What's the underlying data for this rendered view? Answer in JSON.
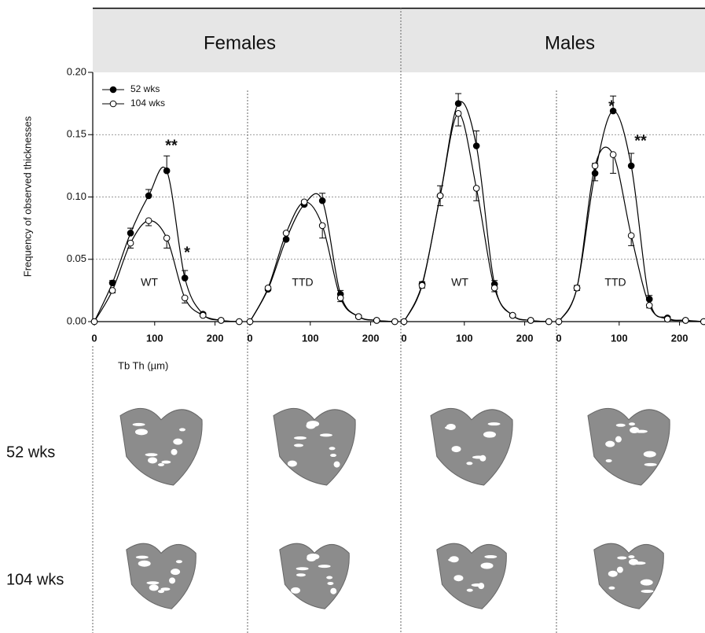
{
  "header": {
    "groups": [
      "Females",
      "Males"
    ]
  },
  "rows": [
    "52 wks",
    "104 wks"
  ],
  "chart_data": [
    {
      "type": "line",
      "y_label": "Frequency of observed thicknesses",
      "x_label": "Tb Th (µm)",
      "label": "WT",
      "annotations": [
        "**",
        "*"
      ],
      "ylim": [
        0,
        0.2
      ],
      "yticks": [
        {
          "value": 0,
          "label": "0.00"
        },
        0.05,
        {
          "value": 0.1,
          "label": "0.10"
        },
        0.15,
        {
          "value": 0.2,
          "label": "0.20"
        }
      ],
      "xlim": [
        0,
        250
      ],
      "xticks": [
        0,
        100,
        200
      ],
      "x": [
        0,
        30,
        60,
        90,
        120,
        150,
        180,
        210,
        240
      ],
      "series": [
        {
          "name": "52 wks",
          "color": "#000000",
          "values": [
            0,
            0.031,
            0.071,
            0.101,
            0.121,
            0.035,
            0.006,
            0.001,
            0
          ],
          "errors": [
            0,
            0.002,
            0.004,
            0.005,
            0.012,
            0.006,
            0.001,
            0,
            0
          ]
        },
        {
          "name": "104 wks",
          "color": "#ffffff",
          "values": [
            0,
            0.025,
            0.063,
            0.081,
            0.067,
            0.019,
            0.005,
            0.001,
            0
          ],
          "errors": [
            0,
            0.002,
            0.004,
            0.004,
            0.008,
            0.004,
            0.001,
            0,
            0
          ]
        }
      ]
    },
    {
      "type": "line",
      "label": "TTD",
      "xlim": [
        0,
        250
      ],
      "xticks": [
        0,
        100,
        200
      ],
      "x": [
        0,
        30,
        60,
        90,
        120,
        150,
        180,
        210,
        240
      ],
      "series": [
        {
          "color": "#000000",
          "values": [
            0,
            0.026,
            0.066,
            0.094,
            0.097,
            0.022,
            0.004,
            0.001,
            0
          ],
          "errors": [
            0,
            0.002,
            0.005,
            0.003,
            0.006,
            0.003,
            0.001,
            0,
            0
          ]
        },
        {
          "color": "#ffffff",
          "values": [
            0,
            0.027,
            0.071,
            0.096,
            0.077,
            0.019,
            0.004,
            0.001,
            0
          ],
          "errors": [
            0,
            0.002,
            0.004,
            0.003,
            0.01,
            0.003,
            0.001,
            0,
            0
          ]
        }
      ]
    },
    {
      "type": "line",
      "label": "WT",
      "xlim": [
        0,
        250
      ],
      "xticks": [
        0,
        100,
        200
      ],
      "x": [
        0,
        30,
        60,
        90,
        120,
        150,
        180,
        210,
        240
      ],
      "series": [
        {
          "color": "#000000",
          "values": [
            0,
            0.03,
            0.101,
            0.175,
            0.141,
            0.03,
            0.005,
            0.001,
            0
          ],
          "errors": [
            0,
            0.002,
            0.008,
            0.008,
            0.012,
            0.003,
            0.001,
            0,
            0
          ]
        },
        {
          "color": "#ffffff",
          "values": [
            0,
            0.029,
            0.101,
            0.167,
            0.107,
            0.027,
            0.005,
            0.001,
            0
          ],
          "errors": [
            0,
            0.002,
            0.008,
            0.01,
            0.01,
            0.003,
            0.001,
            0,
            0
          ]
        }
      ]
    },
    {
      "type": "line",
      "label": "TTD",
      "annotations": [
        "*",
        "**"
      ],
      "xlim": [
        0,
        250
      ],
      "xticks": [
        0,
        100,
        200
      ],
      "x": [
        0,
        30,
        60,
        90,
        120,
        150,
        180,
        210,
        240
      ],
      "series": [
        {
          "color": "#000000",
          "values": [
            0,
            0.027,
            0.119,
            0.169,
            0.125,
            0.018,
            0.003,
            0.001,
            0
          ],
          "errors": [
            0,
            0.002,
            0.008,
            0.012,
            0.01,
            0.003,
            0.001,
            0,
            0
          ]
        },
        {
          "color": "#ffffff",
          "values": [
            0,
            0.027,
            0.125,
            0.134,
            0.069,
            0.013,
            0.002,
            0.001,
            0
          ],
          "errors": [
            0,
            0.002,
            0.012,
            0.015,
            0.008,
            0.002,
            0.001,
            0,
            0
          ]
        }
      ]
    }
  ]
}
